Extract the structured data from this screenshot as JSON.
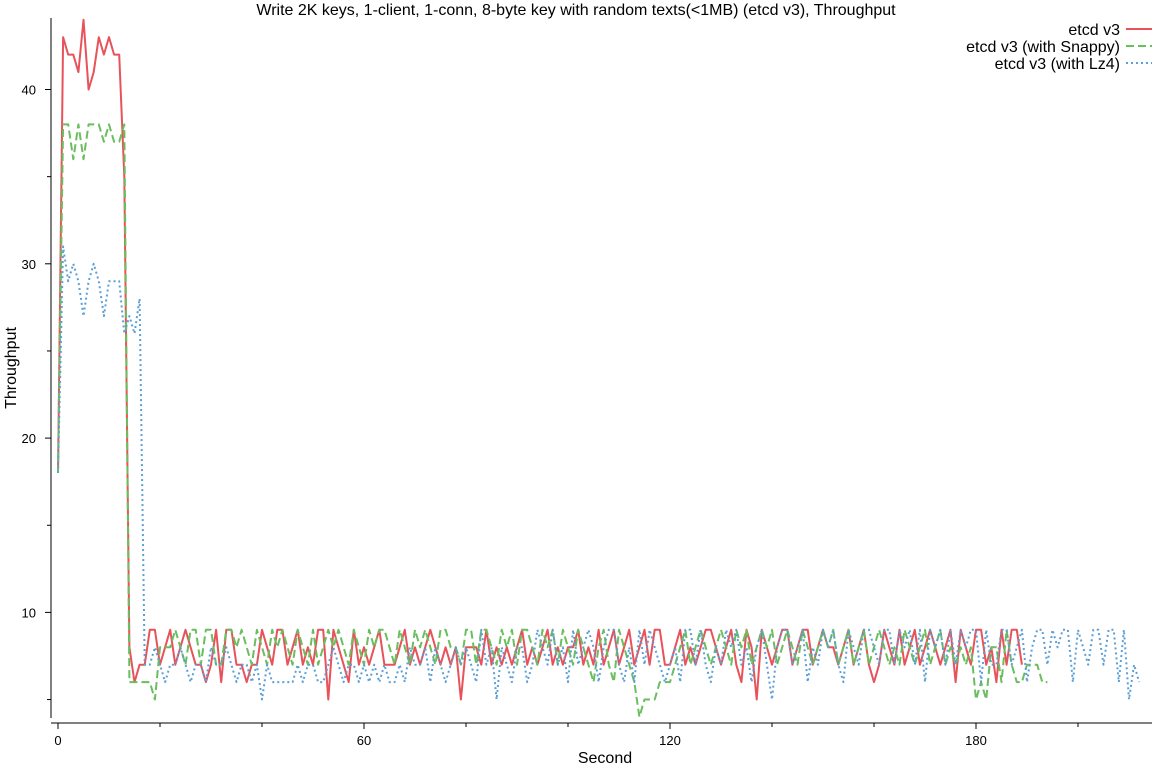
{
  "chart_data": {
    "type": "line",
    "title": "Write 2K keys, 1-client, 1-conn, 8-byte key with random texts(<1MB) (etcd v3), Throughput",
    "xlabel": "Second",
    "ylabel": "Throughput",
    "xlim": [
      0,
      215
    ],
    "ylim": [
      4,
      44
    ],
    "xticks": [
      0,
      60,
      120,
      180
    ],
    "xminor": [
      20,
      40,
      80,
      100,
      140,
      160,
      200
    ],
    "yticks": [
      10,
      20,
      30,
      40
    ],
    "yminor": [
      5,
      15,
      25,
      35
    ],
    "grid": false,
    "legend": "top-right",
    "series": [
      {
        "name": "etcd v3",
        "color": "#e8525a",
        "dash": "solid",
        "x_start": 0,
        "values": [
          18,
          43,
          42,
          42,
          41,
          44,
          40,
          41,
          43,
          42,
          43,
          42,
          42,
          35,
          8,
          6,
          7,
          7,
          9,
          9,
          7,
          8,
          9,
          7,
          8,
          9,
          8,
          7,
          7,
          6,
          7,
          9,
          6,
          9,
          9,
          7,
          7,
          6,
          7,
          7,
          9,
          8,
          7,
          9,
          9,
          7,
          8,
          9,
          7,
          8,
          7,
          9,
          9,
          5,
          9,
          8,
          7,
          6,
          9,
          7,
          8,
          7,
          8,
          9,
          7,
          7,
          7,
          8,
          9,
          7,
          8,
          7,
          8,
          9,
          8,
          7,
          8,
          7,
          8,
          5,
          8,
          8,
          8,
          7,
          9,
          7,
          8,
          7,
          8,
          7,
          8,
          9,
          7,
          8,
          7,
          8,
          9,
          7,
          8,
          7,
          8,
          8,
          9,
          7,
          8,
          7,
          9,
          7,
          8,
          9,
          7,
          8,
          9,
          7,
          8,
          9,
          7,
          9,
          9,
          7,
          7,
          8,
          9,
          7,
          8,
          7,
          8,
          9,
          9,
          8,
          7,
          8,
          9,
          7,
          6,
          9,
          8,
          5,
          9,
          8,
          7,
          8,
          9,
          9,
          7,
          8,
          9,
          9,
          7,
          8,
          9,
          8,
          8,
          7,
          8,
          9,
          7,
          8,
          9,
          7,
          6,
          7,
          9,
          8,
          7,
          9,
          7,
          8,
          9,
          7,
          8,
          9,
          8,
          7,
          8,
          9,
          6,
          9,
          8,
          7,
          9,
          9,
          7,
          8,
          6,
          9,
          7,
          9,
          9,
          7
        ]
      },
      {
        "name": "etcd v3 (with Snappy)",
        "color": "#6abe5e",
        "dash": "dashed",
        "x_start": 0,
        "values": [
          18,
          38,
          38,
          36,
          38,
          36,
          38,
          38,
          38,
          37,
          38,
          37,
          37,
          38,
          6,
          6,
          6,
          6,
          6,
          5,
          8,
          8,
          8,
          9,
          8,
          7,
          9,
          9,
          7,
          9,
          9,
          7,
          7,
          9,
          9,
          8,
          9,
          8,
          7,
          9,
          8,
          7,
          9,
          8,
          9,
          8,
          7,
          9,
          8,
          7,
          9,
          7,
          8,
          9,
          8,
          9,
          8,
          7,
          9,
          8,
          7,
          9,
          8,
          9,
          9,
          8,
          7,
          9,
          8,
          7,
          9,
          8,
          9,
          8,
          7,
          9,
          9,
          8,
          8,
          7,
          9,
          9,
          7,
          9,
          9,
          8,
          7,
          9,
          8,
          9,
          7,
          9,
          9,
          8,
          7,
          9,
          8,
          9,
          7,
          9,
          8,
          7,
          9,
          8,
          7,
          6,
          8,
          9,
          7,
          6,
          9,
          8,
          7,
          6,
          4,
          5,
          5,
          5,
          6,
          6,
          6,
          7,
          8,
          9,
          7,
          8,
          9,
          8,
          7,
          8,
          9,
          8,
          7,
          9,
          8,
          9,
          7,
          8,
          9,
          8,
          9,
          7,
          8,
          9,
          8,
          7,
          9,
          8,
          7,
          8,
          9,
          8,
          9,
          7,
          8,
          9,
          7,
          8,
          9,
          7,
          8,
          9,
          8,
          7,
          8,
          7,
          9,
          8,
          7,
          8,
          9,
          7,
          8,
          9,
          7,
          8,
          7,
          8,
          7,
          8,
          5,
          6,
          5,
          8,
          8,
          6,
          9,
          7,
          6,
          6,
          7,
          7,
          7,
          6,
          6
        ]
      },
      {
        "name": "etcd v3 (with Lz4)",
        "color": "#5b9fd6",
        "dash": "dotted",
        "x_start": 0,
        "values": [
          18,
          31,
          29,
          30,
          29,
          27,
          29,
          30,
          29,
          27,
          29,
          29,
          29,
          26,
          27,
          26,
          28,
          7,
          7,
          8,
          7,
          6,
          7,
          7,
          8,
          7,
          6,
          7,
          7,
          6,
          8,
          7,
          7,
          8,
          7,
          6,
          7,
          7,
          6,
          7,
          5,
          7,
          6,
          6,
          6,
          6,
          6,
          7,
          6,
          7,
          7,
          6,
          6,
          7,
          8,
          7,
          6,
          7,
          7,
          6,
          7,
          6,
          7,
          6,
          7,
          6,
          6,
          7,
          6,
          8,
          7,
          7,
          8,
          6,
          8,
          7,
          6,
          7,
          8,
          7,
          8,
          7,
          6,
          9,
          7,
          8,
          5,
          8,
          7,
          6,
          8,
          8,
          6,
          7,
          9,
          8,
          7,
          9,
          7,
          8,
          6,
          9,
          7,
          8,
          9,
          8,
          6,
          8,
          9,
          9,
          7,
          6,
          8,
          6,
          9,
          7,
          9,
          8,
          7,
          6,
          7,
          8,
          6,
          9,
          9,
          7,
          9,
          7,
          6,
          8,
          7,
          9,
          8,
          9,
          7,
          8,
          6,
          8,
          9,
          7,
          5,
          8,
          9,
          9,
          7,
          8,
          9,
          6,
          8,
          7,
          9,
          8,
          9,
          7,
          6,
          9,
          8,
          7,
          9,
          9,
          8,
          7,
          9,
          9,
          7,
          9,
          8,
          9,
          7,
          9,
          6,
          9,
          8,
          9,
          7,
          9,
          7,
          9,
          8,
          9,
          9,
          6,
          9,
          7,
          7,
          9,
          9,
          7,
          8,
          9,
          6,
          8,
          9,
          9,
          7,
          9,
          8,
          9,
          9,
          6,
          9,
          8,
          7,
          9,
          9,
          7,
          9,
          9,
          6,
          9,
          5,
          7,
          6
        ]
      }
    ]
  }
}
